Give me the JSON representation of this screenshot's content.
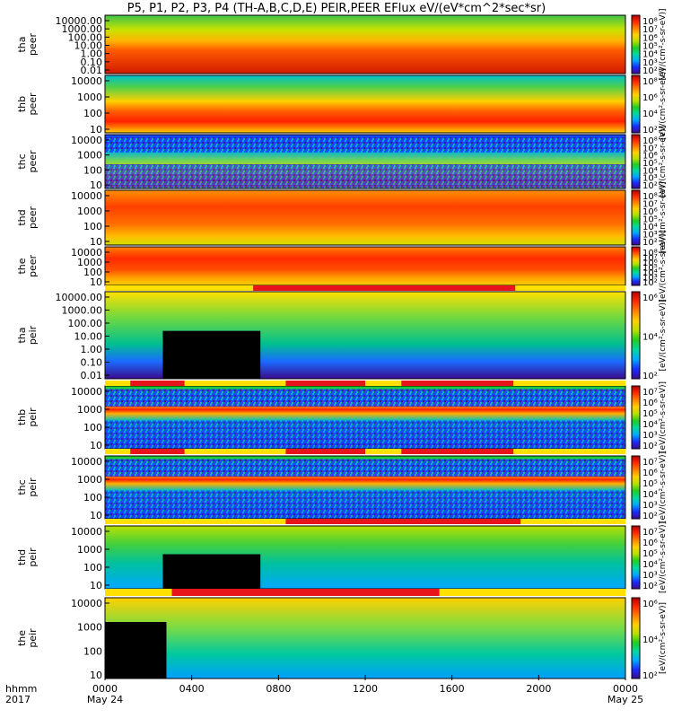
{
  "title": "P5, P1, P2, P3, P4 (TH-A,B,C,D,E) PEIR,PEER EFlux eV/(eV*cm^2*sec*sr)",
  "colors": {
    "colormap": [
      "#3a0a8c",
      "#1a2cff",
      "#00a8ff",
      "#00d9a0",
      "#22cc22",
      "#b8e000",
      "#ffd000",
      "#ff8000",
      "#ff2a00",
      "#b00000"
    ],
    "mode_bar_primary": "#e8141c",
    "mode_bar_secondary": "#ffe000",
    "black": "#000000"
  },
  "chart_data": {
    "type": "heatmap",
    "x_axis": {
      "label_lines": [
        "hhmm",
        "2017"
      ],
      "range": [
        "2017-05-24 00:00",
        "2017-05-25 00:00"
      ],
      "ticks": [
        "0000",
        "0400",
        "0800",
        "1200",
        "1600",
        "2000",
        "0000"
      ],
      "date_labels": [
        "May 24",
        "May 25"
      ]
    },
    "panels": [
      {
        "probe": "tha",
        "species": "peer",
        "ylabel": [
          "tha",
          "peer"
        ],
        "yticks": [
          "10000.00",
          "1000.00",
          "100.00",
          "10.00",
          "1.00",
          "0.10",
          "0.01"
        ],
        "ylog": true,
        "cbar_ticks": [
          "10⁸",
          "10⁷",
          "10⁶",
          "10⁵",
          "10⁴",
          "10³",
          "10²"
        ],
        "cbar_label": "[eV/(cm²-s-sr-eV)]"
      },
      {
        "probe": "thb",
        "species": "peer",
        "ylabel": [
          "thb",
          "peer"
        ],
        "yticks": [
          "10000",
          "1000",
          "100",
          "10"
        ],
        "ylog": true,
        "cbar_ticks": [
          "10⁸",
          "10⁶",
          "10⁴",
          "10²"
        ],
        "cbar_label": "[eV/(cm²-s-sr-eV)]"
      },
      {
        "probe": "thc",
        "species": "peer",
        "ylabel": [
          "thc",
          "peer"
        ],
        "yticks": [
          "10000",
          "1000",
          "100",
          "10"
        ],
        "ylog": true,
        "cbar_ticks": [
          "10⁸",
          "10⁷",
          "10⁶",
          "10⁵",
          "10⁴",
          "10³",
          "10²"
        ],
        "cbar_label": "[eV/(cm²-s-sr-eV)]"
      },
      {
        "probe": "thd",
        "species": "peer",
        "ylabel": [
          "thd",
          "peer"
        ],
        "yticks": [
          "10000",
          "1000",
          "100",
          "10"
        ],
        "ylog": true,
        "cbar_ticks": [
          "10⁸",
          "10⁷",
          "10⁶",
          "10⁵",
          "10⁴",
          "10³",
          "10²"
        ],
        "cbar_label": "[eV/(cm²-s-sr-eV)]"
      },
      {
        "probe": "the",
        "species": "peer",
        "ylabel": [
          "the",
          "peer"
        ],
        "yticks": [
          "10000",
          "1000",
          "100",
          "10"
        ],
        "ylog": true,
        "cbar_ticks": [
          "10⁸",
          "10⁷",
          "10⁶",
          "10⁵",
          "10⁴",
          "10³",
          "10²"
        ],
        "cbar_label": "[eV/(cm²-s-sr-eV)]"
      },
      {
        "probe": "tha",
        "species": "peir",
        "ylabel": [
          "tha",
          "peir"
        ],
        "yticks": [
          "10000.00",
          "1000.00",
          "100.00",
          "10.00",
          "1.00",
          "0.10",
          "0.01"
        ],
        "ylog": true,
        "cbar_ticks": [
          "10⁶",
          "10⁴",
          "10²"
        ],
        "cbar_label": "[eV/(cm²-s-sr-eV)]"
      },
      {
        "probe": "thb",
        "species": "peir",
        "ylabel": [
          "thb",
          "peir"
        ],
        "yticks": [
          "10000",
          "1000",
          "100",
          "10"
        ],
        "ylog": true,
        "cbar_ticks": [
          "10⁷",
          "10⁶",
          "10⁵",
          "10⁴",
          "10³",
          "10²"
        ],
        "cbar_label": "[eV/(cm²-s-sr-eV)]"
      },
      {
        "probe": "thc",
        "species": "peir",
        "ylabel": [
          "thc",
          "peir"
        ],
        "yticks": [
          "10000",
          "1000",
          "100",
          "10"
        ],
        "ylog": true,
        "cbar_ticks": [
          "10⁷",
          "10⁶",
          "10⁵",
          "10⁴",
          "10³",
          "10²"
        ],
        "cbar_label": "[eV/(cm²-s-sr-eV)]"
      },
      {
        "probe": "thd",
        "species": "peir",
        "ylabel": [
          "thd",
          "peir"
        ],
        "yticks": [
          "10000",
          "1000",
          "100",
          "10"
        ],
        "ylog": true,
        "cbar_ticks": [
          "10⁷",
          "10⁶",
          "10⁵",
          "10⁴",
          "10³",
          "10²"
        ],
        "cbar_label": "[eV/(cm²-s-sr-eV)]"
      },
      {
        "probe": "the",
        "species": "peir",
        "ylabel": [
          "the",
          "peir"
        ],
        "yticks": [
          "10000",
          "1000",
          "100",
          "10"
        ],
        "ylog": true,
        "cbar_ticks": [
          "10⁶",
          "10⁴",
          "10²"
        ],
        "cbar_label": "[eV/(cm²-s-sr-eV)]"
      }
    ],
    "mode_bars": [
      {
        "after_panel": 4,
        "red_segments": [
          [
            "06:50",
            "18:55"
          ]
        ]
      },
      {
        "after_panel": 5,
        "red_segments": [
          [
            "01:10",
            "03:40"
          ],
          [
            "08:20",
            "12:00"
          ],
          [
            "13:40",
            "18:50"
          ]
        ]
      },
      {
        "after_panel": 6,
        "red_segments": [
          [
            "01:10",
            "03:40"
          ],
          [
            "08:20",
            "12:00"
          ],
          [
            "13:40",
            "18:50"
          ]
        ]
      },
      {
        "after_panel": 7,
        "red_segments": [
          [
            "08:20",
            "19:10"
          ]
        ]
      },
      {
        "after_panel": 8,
        "red_segments": [
          [
            "03:05",
            "15:25"
          ]
        ]
      }
    ]
  }
}
